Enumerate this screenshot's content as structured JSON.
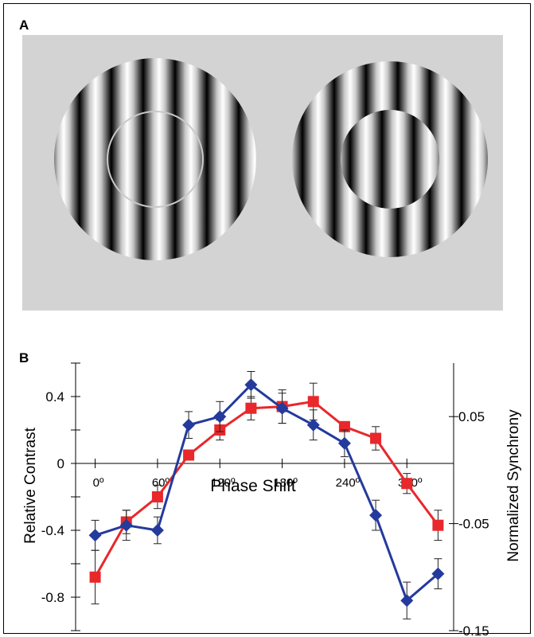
{
  "panel_a": {
    "label": "A",
    "background_color": "#d3d3d3",
    "left_stimulus": "grating-with-inner-ring-outline",
    "right_stimulus": "grating-with-phase-shifted-center"
  },
  "panel_b": {
    "label": "B"
  },
  "chart_data": {
    "type": "line",
    "xlabel": "Phase Shift",
    "ylabel": "Relative Contrast",
    "y2label": "Normalized Synchrony",
    "x_tick_labels": [
      "0º",
      "60º",
      "120º",
      "180º",
      "240º",
      "300º"
    ],
    "x_ticks": [
      0,
      60,
      120,
      180,
      240,
      300
    ],
    "xlim": [
      -15,
      345
    ],
    "ylim": [
      -1.0,
      0.6
    ],
    "y_tick_labels": [
      "0.4",
      "0",
      "-0.4",
      "-0.8"
    ],
    "y_ticks": [
      0.4,
      0,
      -0.4,
      -0.8
    ],
    "y_minor_ticks": [
      0.6,
      0.2,
      -0.2,
      -0.6,
      -1.0
    ],
    "y2lim": [
      -0.15,
      0.1
    ],
    "y2_tick_labels": [
      "0.05",
      "-0.05",
      "-0.15"
    ],
    "y2_ticks": [
      0.05,
      -0.05,
      -0.15
    ],
    "grid": false,
    "series": [
      {
        "color": "#e8282b",
        "marker": "square",
        "axis": "left",
        "x": [
          0,
          30,
          60,
          90,
          120,
          150,
          180,
          210,
          240,
          270,
          300,
          330
        ],
        "y": [
          -0.68,
          -0.35,
          -0.2,
          0.05,
          0.2,
          0.33,
          0.34,
          0.37,
          0.22,
          0.15,
          -0.12,
          -0.37
        ],
        "err": [
          0.16,
          0.07,
          0.07,
          0.03,
          0.06,
          0.07,
          0.1,
          0.11,
          0.03,
          0.07,
          0.06,
          0.09
        ]
      },
      {
        "color": "#243a9c",
        "marker": "diamond",
        "axis": "left",
        "x": [
          0,
          30,
          60,
          90,
          120,
          150,
          180,
          210,
          240,
          270,
          300,
          330
        ],
        "y": [
          -0.43,
          -0.37,
          -0.4,
          0.23,
          0.28,
          0.47,
          0.33,
          0.23,
          0.12,
          -0.31,
          -0.82,
          -0.66
        ],
        "err": [
          0.09,
          0.09,
          0.08,
          0.08,
          0.09,
          0.08,
          0.09,
          0.09,
          0.08,
          0.09,
          0.11,
          0.09
        ]
      }
    ]
  }
}
